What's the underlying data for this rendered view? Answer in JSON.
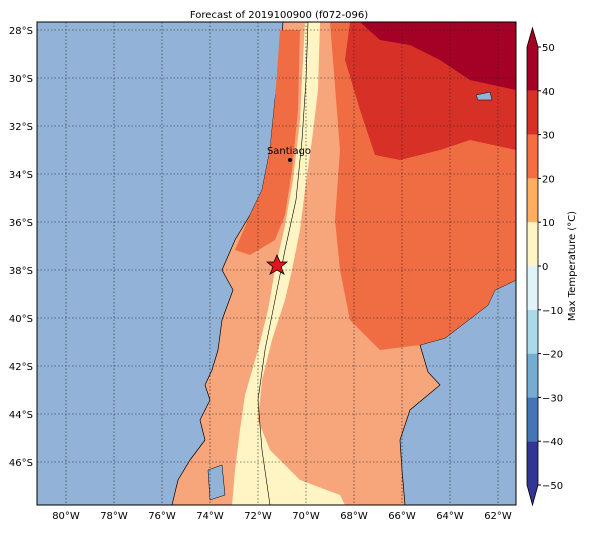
{
  "map": {
    "title": "Forecast of 2019100900 (f072-096)",
    "lat_ticks": [
      {
        "value": -28,
        "label": "28°S"
      },
      {
        "value": -30,
        "label": "30°S"
      },
      {
        "value": -32,
        "label": "32°S"
      },
      {
        "value": -34,
        "label": "34°S"
      },
      {
        "value": -36,
        "label": "36°S"
      },
      {
        "value": -38,
        "label": "38°S"
      },
      {
        "value": -40,
        "label": "40°S"
      },
      {
        "value": -42,
        "label": "42°S"
      },
      {
        "value": -44,
        "label": "44°S"
      },
      {
        "value": -46,
        "label": "46°S"
      }
    ],
    "lon_ticks": [
      {
        "value": -80,
        "label": "80°W"
      },
      {
        "value": -78,
        "label": "78°W"
      },
      {
        "value": -76,
        "label": "76°W"
      },
      {
        "value": -74,
        "label": "74°W"
      },
      {
        "value": -72,
        "label": "72°W"
      },
      {
        "value": -70,
        "label": "70°W"
      },
      {
        "value": -68,
        "label": "68°W"
      },
      {
        "value": -66,
        "label": "66°W"
      },
      {
        "value": -64,
        "label": "64°W"
      },
      {
        "value": -62,
        "label": "62°W"
      }
    ],
    "city": {
      "label": "Santiago"
    },
    "colorbar": {
      "label": "Max Temperature (°C)",
      "ticks": [
        50,
        40,
        30,
        20,
        10,
        0,
        {
          "value": -10,
          "label": "−10"
        },
        {
          "value": -20,
          "label": "−20"
        },
        {
          "value": -30,
          "label": "−30"
        },
        {
          "value": -40,
          "label": "−40"
        },
        {
          "value": -50,
          "label": "−50"
        }
      ]
    }
  }
}
